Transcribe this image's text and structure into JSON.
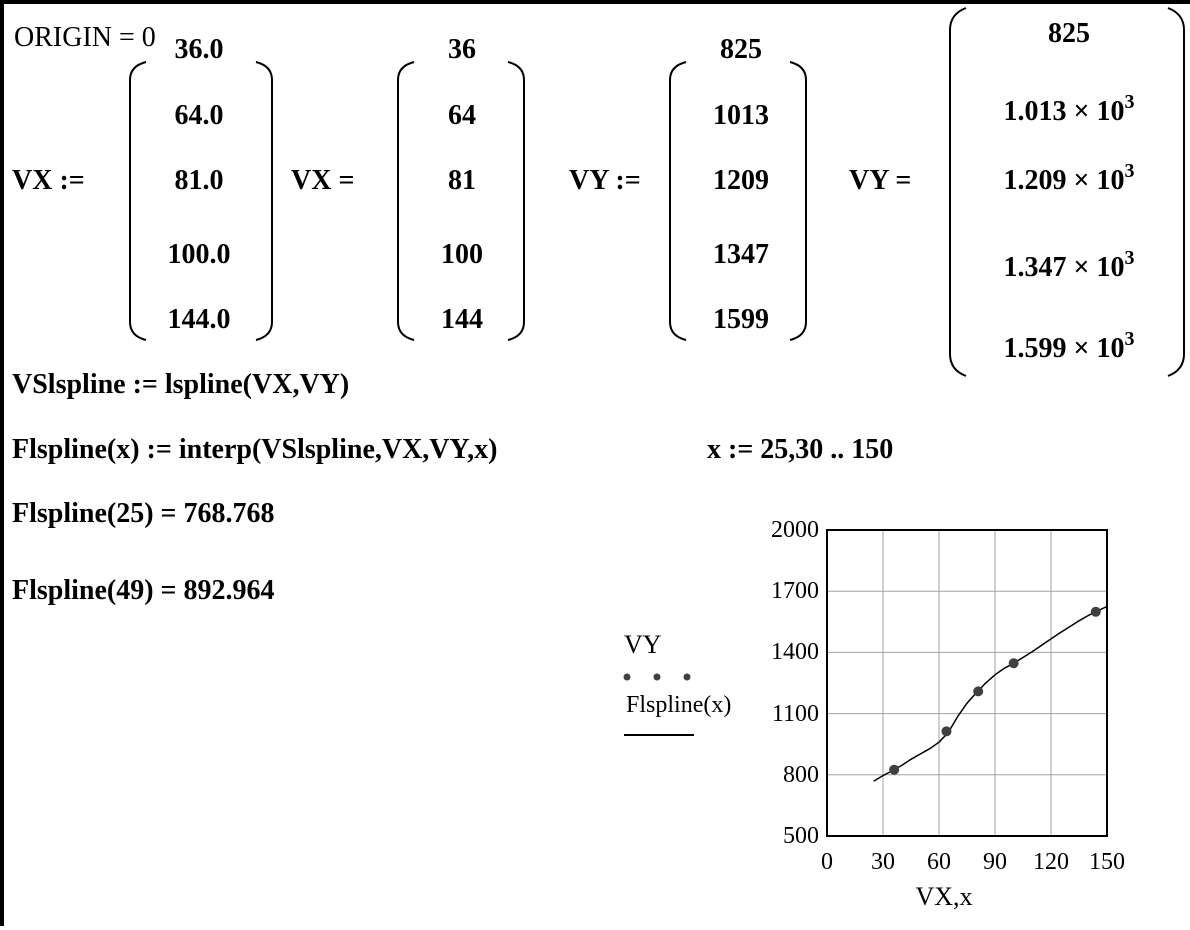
{
  "origin_line": "ORIGIN = 0",
  "vx_def": {
    "label": "VX :=",
    "values": [
      "36.0",
      "64.0",
      "81.0",
      "100.0",
      "144.0"
    ]
  },
  "vx_eval": {
    "label": "VX =",
    "values": [
      "36",
      "64",
      "81",
      "100",
      "144"
    ]
  },
  "vy_def": {
    "label": "VY :=",
    "values": [
      "825",
      "1013",
      "1209",
      "1347",
      "1599"
    ]
  },
  "vy_eval": {
    "label": "VY =",
    "values": [
      {
        "mant": "825",
        "exp": ""
      },
      {
        "mant": "1.013 × 10",
        "exp": "3"
      },
      {
        "mant": "1.209 × 10",
        "exp": "3"
      },
      {
        "mant": "1.347 × 10",
        "exp": "3"
      },
      {
        "mant": "1.599 × 10",
        "exp": "3"
      }
    ]
  },
  "lspline_def": "VSlspline := lspline(VX,VY)",
  "interp_def": "Flspline(x) := interp(VSlspline,VX,VY,x)",
  "range_def": "x := 25,30 .. 150",
  "eval_1": "Flspline(25) = 768.768",
  "eval_2": "Flspline(49) = 892.964",
  "chart_data": {
    "type": "line",
    "xlabel": "VX,x",
    "legend": [
      "VY",
      "Flspline(x)"
    ],
    "xlim": [
      0,
      150
    ],
    "ylim": [
      500,
      2000
    ],
    "x_ticks": [
      "0",
      "30",
      "60",
      "90",
      "120",
      "150"
    ],
    "y_ticks": [
      "500",
      "800",
      "1100",
      "1400",
      "1700",
      "2000"
    ],
    "grid": true,
    "series": [
      {
        "name": "VY",
        "style": "points",
        "x": [
          36,
          64,
          81,
          100,
          144
        ],
        "y": [
          825,
          1013,
          1209,
          1347,
          1599
        ]
      },
      {
        "name": "Flspline(x)",
        "style": "line",
        "x": [
          25,
          30,
          35,
          40,
          45,
          50,
          55,
          60,
          65,
          70,
          75,
          80,
          85,
          90,
          95,
          100,
          105,
          110,
          115,
          120,
          125,
          130,
          135,
          140,
          145,
          150
        ],
        "y": [
          769,
          796,
          820,
          846,
          876,
          902,
          928,
          960,
          1008,
          1086,
          1151,
          1202,
          1250,
          1290,
          1322,
          1347,
          1375,
          1404,
          1435,
          1466,
          1497,
          1526,
          1555,
          1581,
          1604,
          1625
        ]
      }
    ]
  }
}
